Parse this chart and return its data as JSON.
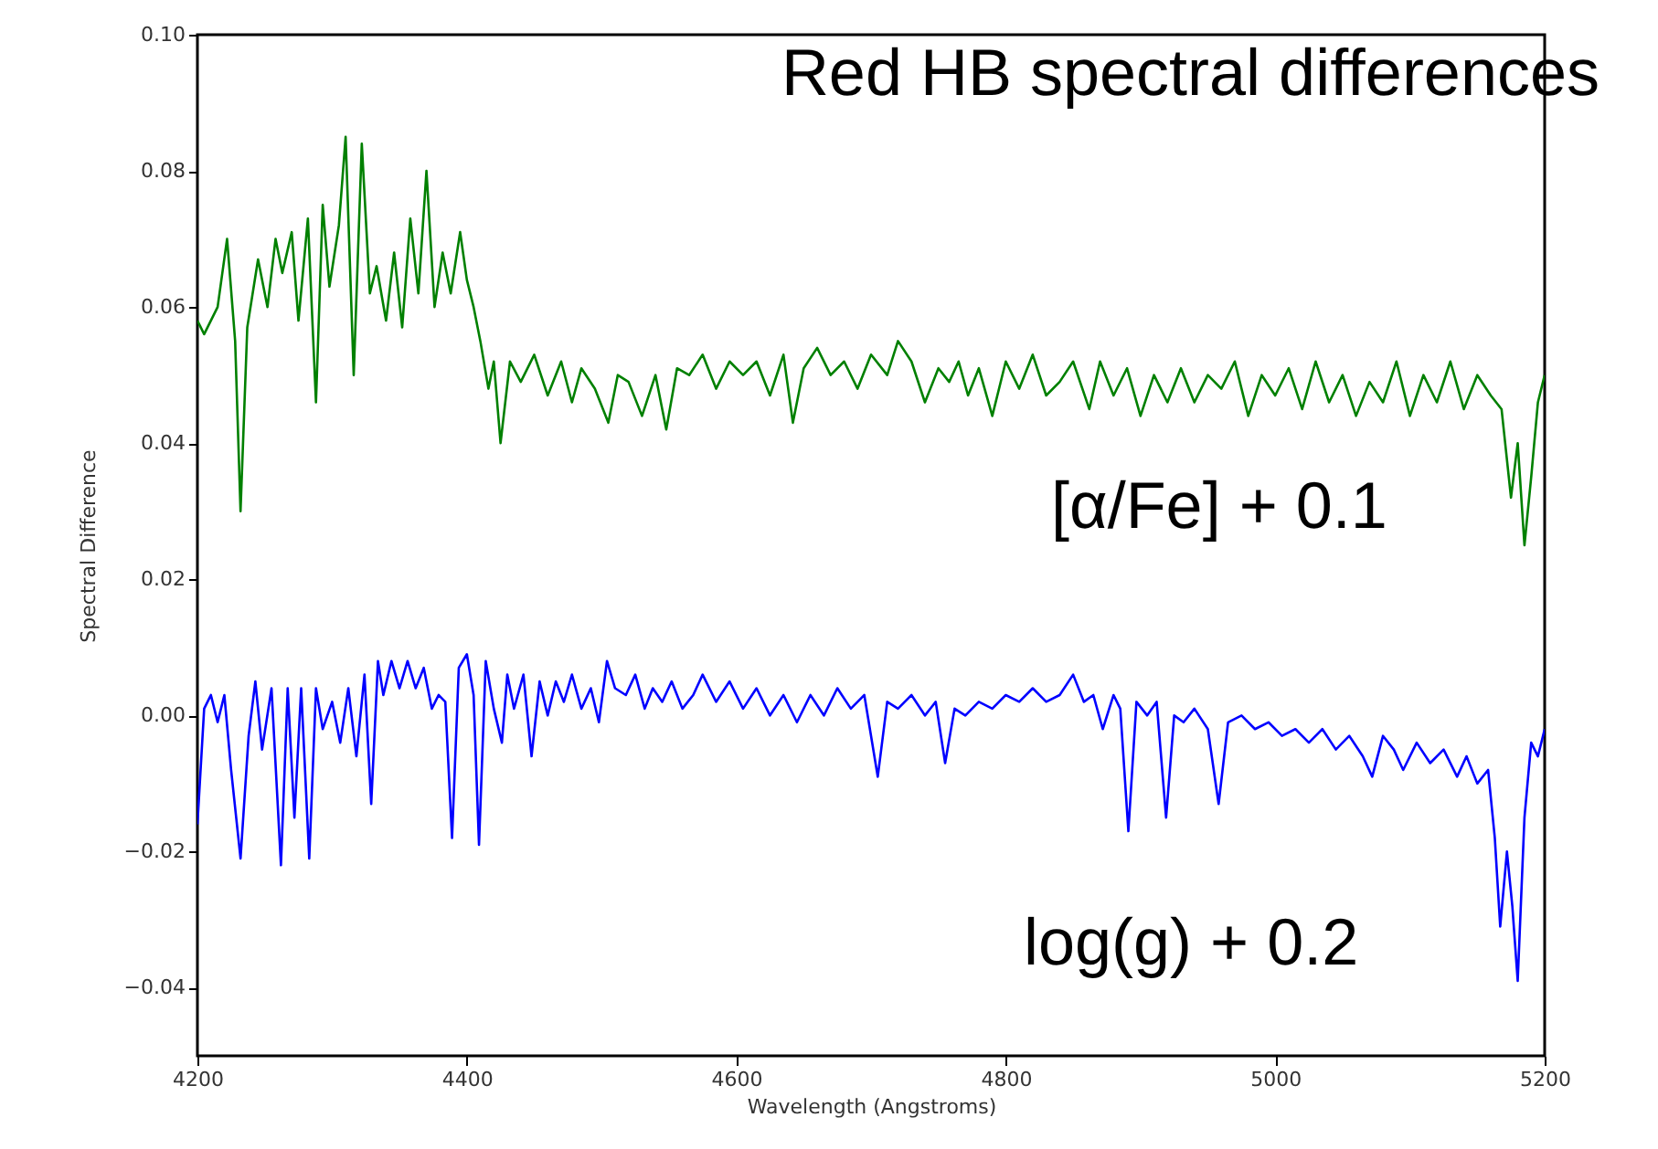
{
  "chart_data": {
    "type": "line",
    "title": "Red HB spectral differences",
    "xlabel": "Wavelength (Angstroms)",
    "ylabel": "Spectral Difference",
    "xlim": [
      4200,
      5200
    ],
    "xticks": [
      4200,
      4400,
      4600,
      4800,
      5000,
      5200
    ],
    "ylim": [
      -0.05,
      0.1
    ],
    "yticks": [
      {
        "value": -0.04,
        "label": "−0.04"
      },
      {
        "value": -0.02,
        "label": "−0.02"
      },
      {
        "value": 0,
        "label": "0.00"
      },
      {
        "value": 0.02,
        "label": "0.02"
      },
      {
        "value": 0.04,
        "label": "0.04"
      },
      {
        "value": 0.06,
        "label": "0.06"
      },
      {
        "value": 0.08,
        "label": "0.08"
      },
      {
        "value": 0.1,
        "label": "0.10"
      }
    ],
    "grid": false,
    "marker": "none",
    "line_style": "solid",
    "annotations": [
      "[α/Fe] + 0.1",
      "log(g) + 0.2"
    ],
    "series": [
      {
        "color": "#008000",
        "x": [
          4200,
          4205,
          4215,
          4222,
          4228,
          4232,
          4237,
          4245,
          4252,
          4258,
          4263,
          4270,
          4275,
          4282,
          4288,
          4293,
          4298,
          4305,
          4310,
          4316,
          4322,
          4328,
          4333,
          4340,
          4346,
          4352,
          4358,
          4364,
          4370,
          4376,
          4382,
          4388,
          4395,
          4400,
          4405,
          4410,
          4416,
          4420,
          4425,
          4432,
          4440,
          4450,
          4460,
          4470,
          4478,
          4485,
          4495,
          4505,
          4512,
          4520,
          4530,
          4540,
          4548,
          4556,
          4565,
          4575,
          4585,
          4595,
          4605,
          4615,
          4625,
          4635,
          4642,
          4650,
          4660,
          4670,
          4680,
          4690,
          4700,
          4712,
          4720,
          4730,
          4740,
          4750,
          4758,
          4765,
          4772,
          4780,
          4790,
          4800,
          4810,
          4820,
          4830,
          4840,
          4850,
          4862,
          4870,
          4880,
          4890,
          4900,
          4910,
          4920,
          4930,
          4940,
          4950,
          4960,
          4970,
          4980,
          4990,
          5000,
          5010,
          5020,
          5030,
          5040,
          5050,
          5060,
          5070,
          5080,
          5090,
          5100,
          5110,
          5120,
          5130,
          5140,
          5150,
          5160,
          5168,
          5175,
          5180,
          5185,
          5190,
          5195,
          5200
        ],
        "values": [
          0.058,
          0.056,
          0.06,
          0.07,
          0.055,
          0.03,
          0.057,
          0.067,
          0.06,
          0.07,
          0.065,
          0.071,
          0.058,
          0.073,
          0.046,
          0.075,
          0.063,
          0.072,
          0.085,
          0.05,
          0.084,
          0.062,
          0.066,
          0.058,
          0.068,
          0.057,
          0.073,
          0.062,
          0.08,
          0.06,
          0.068,
          0.062,
          0.071,
          0.064,
          0.06,
          0.055,
          0.048,
          0.052,
          0.04,
          0.052,
          0.049,
          0.053,
          0.047,
          0.052,
          0.046,
          0.051,
          0.048,
          0.043,
          0.05,
          0.049,
          0.044,
          0.05,
          0.042,
          0.051,
          0.05,
          0.053,
          0.048,
          0.052,
          0.05,
          0.052,
          0.047,
          0.053,
          0.043,
          0.051,
          0.054,
          0.05,
          0.052,
          0.048,
          0.053,
          0.05,
          0.055,
          0.052,
          0.046,
          0.051,
          0.049,
          0.052,
          0.047,
          0.051,
          0.044,
          0.052,
          0.048,
          0.053,
          0.047,
          0.049,
          0.052,
          0.045,
          0.052,
          0.047,
          0.051,
          0.044,
          0.05,
          0.046,
          0.051,
          0.046,
          0.05,
          0.048,
          0.052,
          0.044,
          0.05,
          0.047,
          0.051,
          0.045,
          0.052,
          0.046,
          0.05,
          0.044,
          0.049,
          0.046,
          0.052,
          0.044,
          0.05,
          0.046,
          0.052,
          0.045,
          0.05,
          0.047,
          0.045,
          0.032,
          0.04,
          0.025,
          0.035,
          0.046,
          0.05
        ]
      },
      {
        "color": "#0000ff",
        "x": [
          4200,
          4205,
          4210,
          4215,
          4220,
          4225,
          4232,
          4238,
          4243,
          4248,
          4255,
          4262,
          4267,
          4272,
          4277,
          4283,
          4288,
          4293,
          4300,
          4306,
          4312,
          4318,
          4324,
          4329,
          4334,
          4338,
          4344,
          4350,
          4356,
          4362,
          4368,
          4374,
          4379,
          4384,
          4389,
          4394,
          4400,
          4405,
          4409,
          4414,
          4420,
          4426,
          4430,
          4435,
          4442,
          4448,
          4454,
          4460,
          4466,
          4472,
          4478,
          4485,
          4492,
          4498,
          4504,
          4510,
          4518,
          4525,
          4532,
          4538,
          4545,
          4552,
          4560,
          4568,
          4575,
          4585,
          4595,
          4605,
          4615,
          4625,
          4635,
          4645,
          4655,
          4665,
          4675,
          4685,
          4695,
          4705,
          4712,
          4720,
          4730,
          4740,
          4748,
          4755,
          4762,
          4770,
          4780,
          4790,
          4800,
          4810,
          4820,
          4830,
          4840,
          4850,
          4858,
          4865,
          4872,
          4880,
          4885,
          4891,
          4897,
          4905,
          4912,
          4919,
          4925,
          4932,
          4940,
          4950,
          4958,
          4965,
          4975,
          4985,
          4995,
          5005,
          5015,
          5025,
          5035,
          5045,
          5055,
          5065,
          5072,
          5080,
          5088,
          5095,
          5105,
          5115,
          5125,
          5135,
          5142,
          5150,
          5158,
          5163,
          5167,
          5172,
          5176,
          5180,
          5185,
          5190,
          5195,
          5200
        ],
        "values": [
          -0.016,
          0.001,
          0.003,
          -0.001,
          0.003,
          -0.008,
          -0.021,
          -0.003,
          0.005,
          -0.005,
          0.004,
          -0.022,
          0.004,
          -0.015,
          0.004,
          -0.021,
          0.004,
          -0.002,
          0.002,
          -0.004,
          0.004,
          -0.006,
          0.006,
          -0.013,
          0.008,
          0.003,
          0.008,
          0.004,
          0.008,
          0.004,
          0.007,
          0.001,
          0.003,
          0.002,
          -0.018,
          0.007,
          0.009,
          0.003,
          -0.019,
          0.008,
          0.001,
          -0.004,
          0.006,
          0.001,
          0.006,
          -0.006,
          0.005,
          0.0,
          0.005,
          0.002,
          0.006,
          0.001,
          0.004,
          -0.001,
          0.008,
          0.004,
          0.003,
          0.006,
          0.001,
          0.004,
          0.002,
          0.005,
          0.001,
          0.003,
          0.006,
          0.002,
          0.005,
          0.001,
          0.004,
          0.0,
          0.003,
          -0.001,
          0.003,
          0.0,
          0.004,
          0.001,
          0.003,
          -0.009,
          0.002,
          0.001,
          0.003,
          0.0,
          0.002,
          -0.007,
          0.001,
          0.0,
          0.002,
          0.001,
          0.003,
          0.002,
          0.004,
          0.002,
          0.003,
          0.006,
          0.002,
          0.003,
          -0.002,
          0.003,
          0.001,
          -0.017,
          0.002,
          0.0,
          0.002,
          -0.015,
          0.0,
          -0.001,
          0.001,
          -0.002,
          -0.013,
          -0.001,
          0.0,
          -0.002,
          -0.001,
          -0.003,
          -0.002,
          -0.004,
          -0.002,
          -0.005,
          -0.003,
          -0.006,
          -0.009,
          -0.003,
          -0.005,
          -0.008,
          -0.004,
          -0.007,
          -0.005,
          -0.009,
          -0.006,
          -0.01,
          -0.008,
          -0.018,
          -0.031,
          -0.02,
          -0.028,
          -0.039,
          -0.015,
          -0.004,
          -0.006,
          -0.002
        ]
      }
    ]
  }
}
